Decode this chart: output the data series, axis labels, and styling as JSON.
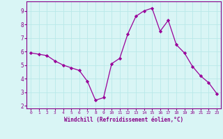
{
  "x": [
    0,
    1,
    2,
    3,
    4,
    5,
    6,
    7,
    8,
    9,
    10,
    11,
    12,
    13,
    14,
    15,
    16,
    17,
    18,
    19,
    20,
    21,
    22,
    23
  ],
  "y": [
    5.9,
    5.8,
    5.7,
    5.3,
    5.0,
    4.8,
    4.6,
    3.8,
    2.4,
    2.6,
    5.1,
    5.5,
    7.3,
    8.6,
    9.0,
    9.2,
    7.5,
    8.3,
    6.5,
    5.9,
    4.9,
    4.2,
    3.7,
    2.9
  ],
  "xlabel": "Windchill (Refroidissement éolien,°C)",
  "xlim": [
    -0.5,
    23.5
  ],
  "ylim": [
    1.8,
    9.7
  ],
  "yticks": [
    2,
    3,
    4,
    5,
    6,
    7,
    8,
    9
  ],
  "xticks": [
    0,
    1,
    2,
    3,
    4,
    5,
    6,
    7,
    8,
    9,
    10,
    11,
    12,
    13,
    14,
    15,
    16,
    17,
    18,
    19,
    20,
    21,
    22,
    23
  ],
  "line_color": "#990099",
  "marker_color": "#990099",
  "bg_color": "#d9f5f5",
  "grid_color": "#b8e8e8",
  "spine_color": "#880088",
  "xlabel_color": "#880088",
  "tick_color": "#880088"
}
